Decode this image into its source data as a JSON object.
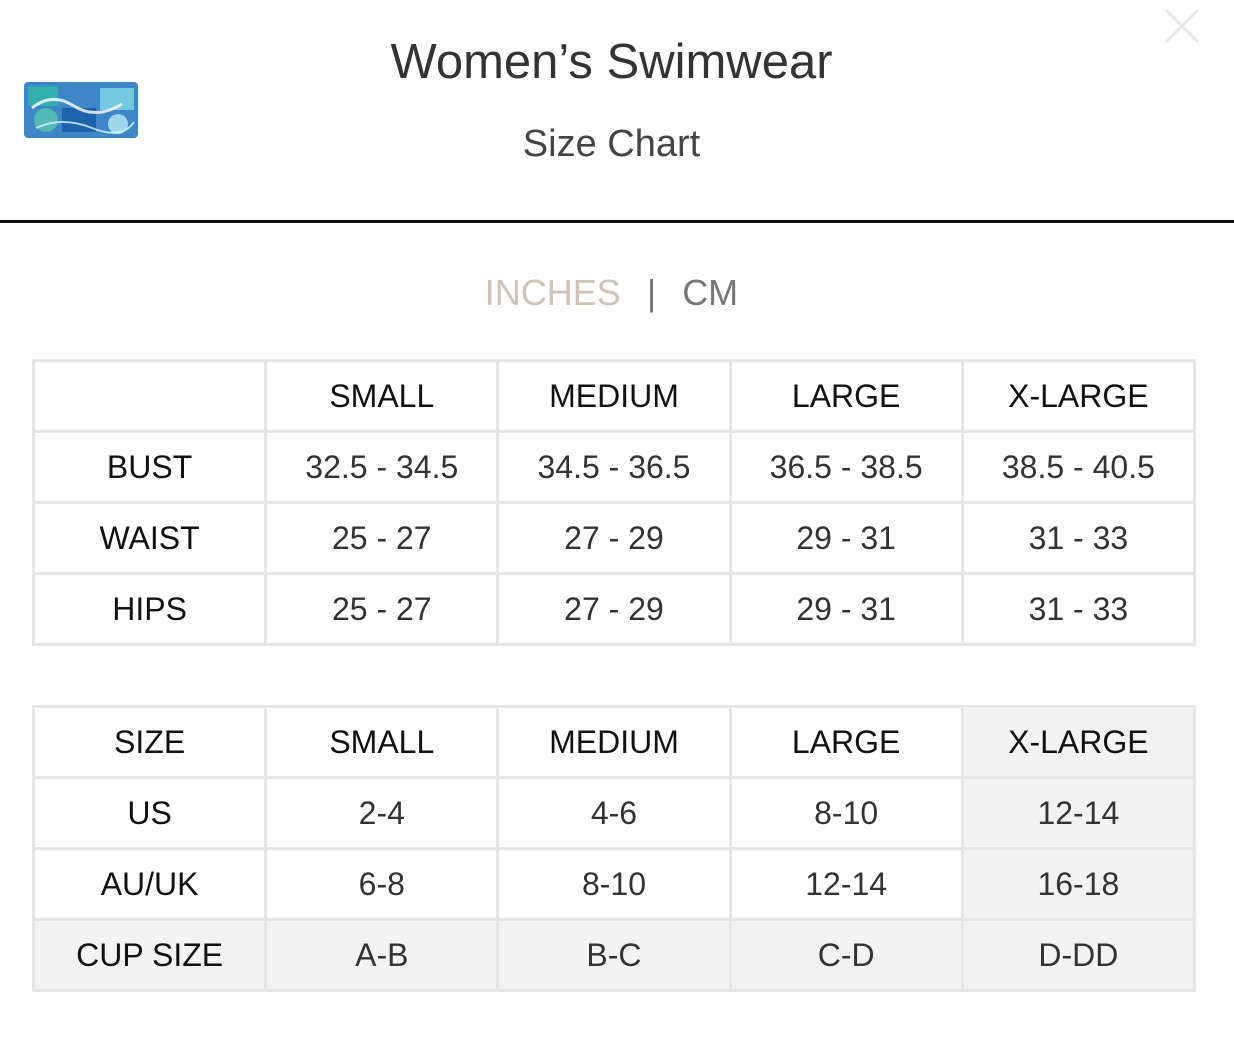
{
  "header": {
    "title": "Women’s Swimwear",
    "subtitle": "Size Chart",
    "close_icon": "close-icon",
    "logo_icon": "brand-logo-icon"
  },
  "units": {
    "inches": "INCHES",
    "separator": "|",
    "cm": "CM",
    "selected": "INCHES"
  },
  "colors": {
    "selected_unit": "#cfc3b8",
    "unselected_unit": "#777777",
    "divider": "#111111",
    "cell_border": "#e6e6e6",
    "highlight_cell": "#f3f3f3"
  },
  "measurements": {
    "columns": [
      "",
      "SMALL",
      "MEDIUM",
      "LARGE",
      "X-LARGE"
    ],
    "rows": [
      {
        "label": "BUST",
        "values": [
          "32.5 - 34.5",
          "34.5 - 36.5",
          "36.5 - 38.5",
          "38.5 - 40.5"
        ]
      },
      {
        "label": "WAIST",
        "values": [
          "25 - 27",
          "27 - 29",
          "29 - 31",
          "31 - 33"
        ]
      },
      {
        "label": "HIPS",
        "values": [
          "25 - 27",
          "27 - 29",
          "29 - 31",
          "31 - 33"
        ]
      }
    ]
  },
  "sizes": {
    "columns": [
      "SIZE",
      "SMALL",
      "MEDIUM",
      "LARGE",
      "X-LARGE"
    ],
    "rows": [
      {
        "label": "US",
        "values": [
          "2-4",
          "4-6",
          "8-10",
          "12-14"
        ]
      },
      {
        "label": "AU/UK",
        "values": [
          "6-8",
          "8-10",
          "12-14",
          "16-18"
        ]
      },
      {
        "label": "CUP SIZE",
        "values": [
          "A-B",
          "B-C",
          "C-D",
          "D-DD"
        ]
      }
    ]
  }
}
